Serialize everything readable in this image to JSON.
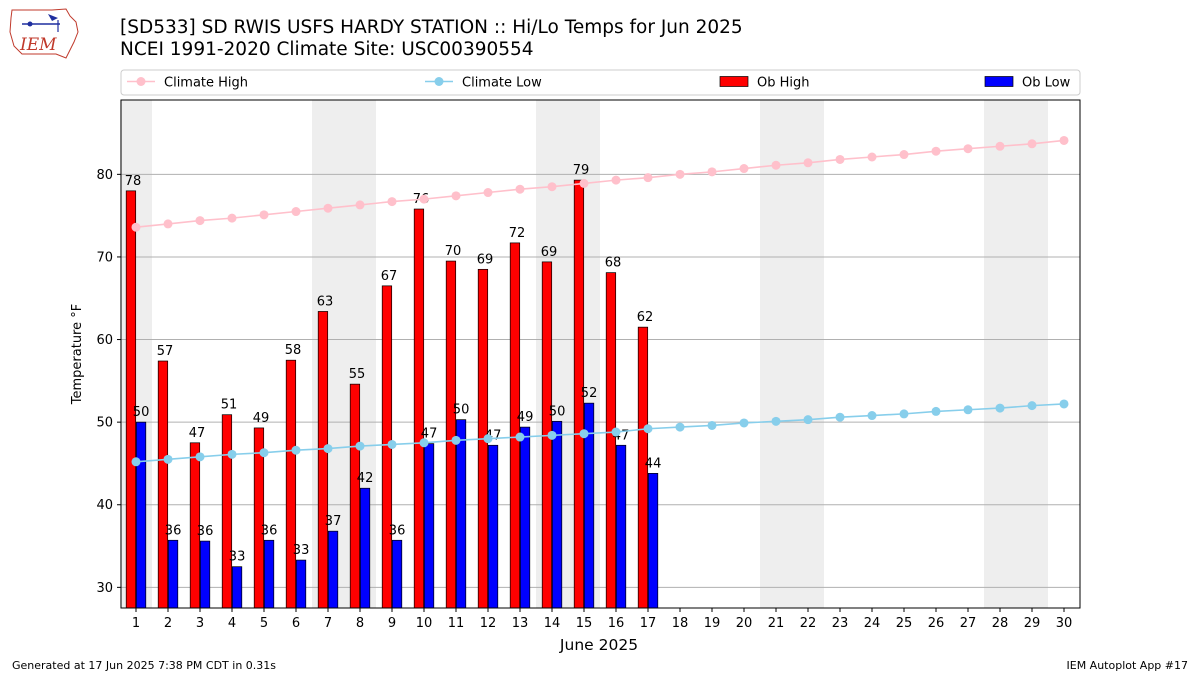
{
  "header": {
    "title": "[SD533] SD RWIS USFS HARDY STATION :: Hi/Lo Temps for Jun 2025",
    "subtitle": "NCEI 1991-2020 Climate Site: USC00390554",
    "logo_text": "IEM"
  },
  "footer": {
    "left": "Generated at 17 Jun 2025 7:38 PM CDT in 0.31s",
    "right": "IEM Autoplot App #17"
  },
  "colors": {
    "climate_high": "#ffc0cb",
    "climate_low": "#87ceeb",
    "ob_high": "#ff0000",
    "ob_low": "#0000ff",
    "weekend_shade": "#eeeeee",
    "grid": "#b0b0b0"
  },
  "chart_data": {
    "type": "bar",
    "xlabel": "June 2025",
    "ylabel": "Temperature °F",
    "ylim": [
      27.5,
      89
    ],
    "yticks": [
      30,
      40,
      50,
      60,
      70,
      80
    ],
    "grid": "horizontal",
    "legend_position": "top",
    "categories": [
      "1",
      "2",
      "3",
      "4",
      "5",
      "6",
      "7",
      "8",
      "9",
      "10",
      "11",
      "12",
      "13",
      "14",
      "15",
      "16",
      "17",
      "18",
      "19",
      "20",
      "21",
      "22",
      "23",
      "24",
      "25",
      "26",
      "27",
      "28",
      "29",
      "30"
    ],
    "shaded_days": [
      1,
      7,
      8,
      14,
      15,
      21,
      22,
      28,
      29
    ],
    "series": [
      {
        "name": "Climate High",
        "kind": "line",
        "values": [
          73.6,
          74.0,
          74.4,
          74.7,
          75.1,
          75.5,
          75.9,
          76.3,
          76.7,
          77.0,
          77.4,
          77.8,
          78.2,
          78.5,
          78.9,
          79.3,
          79.6,
          80.0,
          80.3,
          80.7,
          81.1,
          81.4,
          81.8,
          82.1,
          82.4,
          82.8,
          83.1,
          83.4,
          83.7,
          84.1
        ]
      },
      {
        "name": "Climate Low",
        "kind": "line",
        "values": [
          45.2,
          45.5,
          45.8,
          46.1,
          46.3,
          46.6,
          46.8,
          47.1,
          47.3,
          47.5,
          47.8,
          48.0,
          48.2,
          48.4,
          48.6,
          48.8,
          49.2,
          49.4,
          49.6,
          49.9,
          50.1,
          50.3,
          50.6,
          50.8,
          51.0,
          51.3,
          51.5,
          51.7,
          52.0,
          52.2
        ]
      },
      {
        "name": "Ob High",
        "kind": "bar",
        "values": [
          78,
          57,
          47,
          51,
          49,
          58,
          63,
          55,
          67,
          76,
          70,
          69,
          72,
          69,
          79,
          68,
          62,
          null,
          null,
          null,
          null,
          null,
          null,
          null,
          null,
          null,
          null,
          null,
          null,
          null
        ],
        "exact": [
          78.0,
          57.4,
          47.5,
          50.9,
          49.3,
          57.5,
          63.4,
          54.6,
          66.5,
          75.8,
          69.5,
          68.5,
          71.7,
          69.4,
          79.3,
          68.1,
          61.5
        ]
      },
      {
        "name": "Ob Low",
        "kind": "bar",
        "values": [
          50,
          36,
          36,
          33,
          36,
          33,
          37,
          42,
          36,
          47,
          50,
          47,
          49,
          50,
          52,
          47,
          44,
          null,
          null,
          null,
          null,
          null,
          null,
          null,
          null,
          null,
          null,
          null,
          null,
          null
        ],
        "exact": [
          50.0,
          35.7,
          35.6,
          32.5,
          35.7,
          33.3,
          36.8,
          42.0,
          35.7,
          47.4,
          50.3,
          47.2,
          49.4,
          50.1,
          52.3,
          47.2,
          43.8
        ]
      }
    ]
  }
}
